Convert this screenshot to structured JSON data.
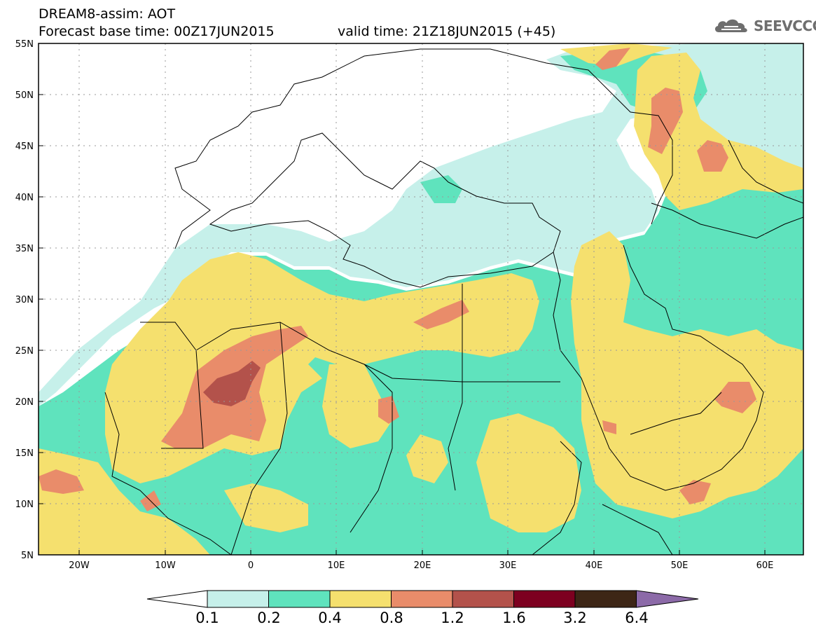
{
  "header": {
    "title_line1": "DREAM8-assim: AOT",
    "title_line2": "Forecast base time: 00Z17JUN2015",
    "valid_time": "valid time: 21Z18JUN2015 (+45)",
    "logo_text": "SEEVCCC",
    "logo_icon": "cloud-icon"
  },
  "map": {
    "variable": "AOT",
    "lat_labels": [
      "55N",
      "50N",
      "45N",
      "40N",
      "35N",
      "30N",
      "25N",
      "20N",
      "15N",
      "10N",
      "5N"
    ],
    "lon_labels": [
      "20W",
      "10W",
      "0",
      "10E",
      "20E",
      "30E",
      "40E",
      "50E",
      "60E"
    ],
    "lat_range": [
      5,
      55
    ],
    "lon_range": [
      -25,
      65
    ],
    "grid": true
  },
  "legend": {
    "levels": [
      "0.1",
      "0.2",
      "0.4",
      "0.8",
      "1.2",
      "1.6",
      "3.2",
      "6.4"
    ],
    "colors": [
      "#ffffff",
      "#c6f0ea",
      "#5fe3bd",
      "#f5e06e",
      "#e98c6a",
      "#b3524b",
      "#7d0020",
      "#3d2616",
      "#8c6aa8"
    ]
  }
}
